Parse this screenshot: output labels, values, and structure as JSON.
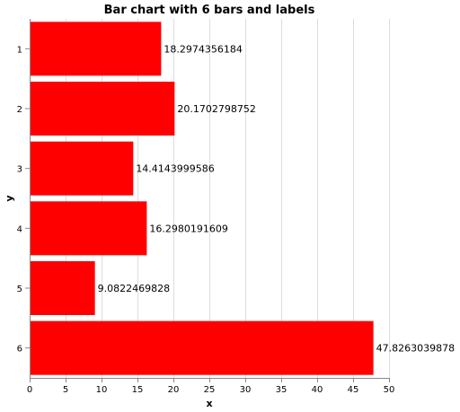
{
  "chart_data": {
    "type": "bar",
    "orientation": "horizontal",
    "title": "Bar chart with 6 bars and labels",
    "xlabel": "x",
    "ylabel": "y",
    "categories": [
      "1",
      "2",
      "3",
      "4",
      "5",
      "6"
    ],
    "values": [
      18.2974356184,
      20.1702798752,
      14.4143999586,
      16.2980191609,
      9.0822469828,
      47.8263039878
    ],
    "data_labels": [
      "18.2974356184",
      "20.1702798752",
      "14.4143999586",
      "16.2980191609",
      "9.0822469828",
      "47.8263039878"
    ],
    "xlim": [
      0,
      50
    ],
    "xticks": [
      0,
      5,
      10,
      15,
      20,
      25,
      30,
      35,
      40,
      45,
      50
    ],
    "grid": true,
    "bar_color": "#ff0000"
  }
}
